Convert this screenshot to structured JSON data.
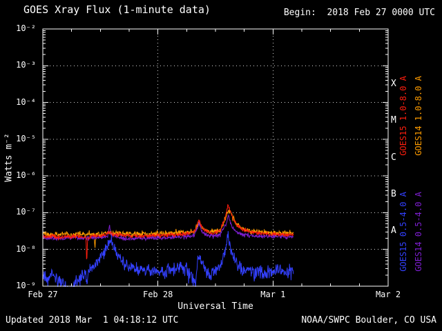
{
  "header": {
    "title": "GOES Xray Flux (1-minute data)",
    "begin_label": "Begin:  2018 Feb 27 0000 UTC"
  },
  "footer": {
    "updated": "Updated 2018 Mar  1 04:18:12 UTC",
    "credit": "NOAA/SWPC Boulder, CO USA"
  },
  "colors": {
    "background": "#000000",
    "axis": "#ffffff",
    "goes15_long": "#ff1e0e",
    "goes14_long": "#ff9c00",
    "goes15_short": "#3340ff",
    "goes14_short": "#7d1fd0"
  },
  "chart_data": {
    "type": "line",
    "title": "GOES Xray Flux (1-minute data)",
    "xlabel": "Universal Time",
    "ylabel": "Watts m⁻²",
    "x_start": "2018 Feb 27 0000 UTC",
    "x_units": "hours since begin",
    "x_range_hours": [
      0,
      72
    ],
    "y_range": [
      1e-09,
      0.01
    ],
    "y_scale": "log",
    "grid": {
      "h_decades": [
        -8,
        -7,
        -6,
        -5,
        -4,
        -3
      ],
      "v_hours": [
        24,
        48
      ]
    },
    "x_ticks": [
      {
        "label": "Feb 27",
        "t": 0
      },
      {
        "label": "Feb 28",
        "t": 24
      },
      {
        "label": "Mar 1",
        "t": 48
      },
      {
        "label": "Mar 2",
        "t": 72
      }
    ],
    "y_ticks": [
      {
        "label": "10⁻²",
        "exp": -2
      },
      {
        "label": "10⁻³",
        "exp": -3
      },
      {
        "label": "10⁻⁴",
        "exp": -4
      },
      {
        "label": "10⁻⁵",
        "exp": -5
      },
      {
        "label": "10⁻⁶",
        "exp": -6
      },
      {
        "label": "10⁻⁷",
        "exp": -7
      },
      {
        "label": "10⁻⁸",
        "exp": -8
      },
      {
        "label": "10⁻⁹",
        "exp": -9
      }
    ],
    "flux_classes": [
      {
        "label": "X",
        "log_center": -3.5
      },
      {
        "label": "M",
        "log_center": -4.5
      },
      {
        "label": "C",
        "log_center": -5.5
      },
      {
        "label": "B",
        "log_center": -6.5
      },
      {
        "label": "A",
        "log_center": -7.5
      }
    ],
    "legend_position": "right",
    "series": [
      {
        "name": "GOES15 1.0-8.0 A",
        "color": "#ff1e0e",
        "noise_log_sigma": 0.045,
        "points": [
          [
            0,
            2.3e-08
          ],
          [
            1,
            2.2e-08
          ],
          [
            2,
            2.4e-08
          ],
          [
            3,
            2.1e-08
          ],
          [
            4,
            2.2e-08
          ],
          [
            5,
            2.3e-08
          ],
          [
            6,
            2.2e-08
          ],
          [
            7,
            2.3e-08
          ],
          [
            8,
            2.2e-08
          ],
          [
            9.0,
            2.1e-08
          ],
          [
            9.15,
            3.5e-09
          ],
          [
            9.35,
            2.1e-08
          ],
          [
            10,
            2.2e-08
          ],
          [
            11,
            2.3e-08
          ],
          [
            12,
            2.3e-08
          ],
          [
            13,
            2.4e-08
          ],
          [
            13.9,
            3e-08
          ],
          [
            14.5,
            2.6e-08
          ],
          [
            15.5,
            2.5e-08
          ],
          [
            17,
            2.4e-08
          ],
          [
            19,
            2.3e-08
          ],
          [
            21,
            2.3e-08
          ],
          [
            23,
            2.4e-08
          ],
          [
            25,
            2.4e-08
          ],
          [
            27,
            2.5e-08
          ],
          [
            29,
            2.6e-08
          ],
          [
            30.5,
            2.8e-08
          ],
          [
            31.8,
            3.2e-08
          ],
          [
            32.5,
            6.8e-08
          ],
          [
            33.0,
            4.5e-08
          ],
          [
            33.8,
            3.2e-08
          ],
          [
            35,
            2.8e-08
          ],
          [
            36,
            2.9e-08
          ],
          [
            37,
            3.4e-08
          ],
          [
            38.0,
            7e-08
          ],
          [
            38.6,
            1.6e-07
          ],
          [
            39.0,
            1.2e-07
          ],
          [
            39.6,
            7e-08
          ],
          [
            40.5,
            4.5e-08
          ],
          [
            41.5,
            3.6e-08
          ],
          [
            43,
            3e-08
          ],
          [
            45,
            2.8e-08
          ],
          [
            47,
            2.6e-08
          ],
          [
            49,
            2.6e-08
          ],
          [
            51,
            2.5e-08
          ],
          [
            52.3,
            2.5e-08
          ]
        ]
      },
      {
        "name": "GOES14 1.0-8.0 A",
        "color": "#ff9c00",
        "noise_log_sigma": 0.07,
        "points": [
          [
            0,
            2.6e-08
          ],
          [
            2,
            2.5e-08
          ],
          [
            4,
            2.6e-08
          ],
          [
            6,
            2.5e-08
          ],
          [
            8,
            2.6e-08
          ],
          [
            10,
            2.6e-08
          ],
          [
            10.7,
            2.6e-08
          ],
          [
            10.85,
            9e-09
          ],
          [
            11.05,
            2.5e-08
          ],
          [
            12,
            2.6e-08
          ],
          [
            14,
            2.8e-08
          ],
          [
            16,
            2.7e-08
          ],
          [
            18,
            2.6e-08
          ],
          [
            20,
            2.6e-08
          ],
          [
            22,
            2.6e-08
          ],
          [
            24,
            2.7e-08
          ],
          [
            26,
            2.7e-08
          ],
          [
            28,
            2.8e-08
          ],
          [
            30,
            2.9e-08
          ],
          [
            31.5,
            3e-08
          ],
          [
            32.5,
            5.5e-08
          ],
          [
            33.2,
            3.8e-08
          ],
          [
            34,
            3.2e-08
          ],
          [
            35.5,
            3e-08
          ],
          [
            37,
            3.2e-08
          ],
          [
            38.2,
            8e-08
          ],
          [
            38.8,
            1.15e-07
          ],
          [
            39.4,
            8e-08
          ],
          [
            40.2,
            5e-08
          ],
          [
            41.5,
            3.8e-08
          ],
          [
            43,
            3.2e-08
          ],
          [
            45,
            3e-08
          ],
          [
            47,
            2.9e-08
          ],
          [
            49,
            2.8e-08
          ],
          [
            51,
            2.8e-08
          ],
          [
            52.3,
            2.8e-08
          ]
        ]
      },
      {
        "name": "GOES15 0.5-4.0 A",
        "color": "#3340ff",
        "noise_log_sigma": 0.16,
        "points": [
          [
            0,
            2e-09
          ],
          [
            1,
            1.6e-09
          ],
          [
            2,
            2.2e-09
          ],
          [
            3,
            1.4e-09
          ],
          [
            4,
            1.2e-09
          ],
          [
            4.5,
            1.1e-09
          ],
          [
            5,
            7e-10
          ],
          [
            5.6,
            5e-10
          ],
          [
            6.2,
            9e-10
          ],
          [
            7,
            1.3e-09
          ],
          [
            8,
            1.8e-09
          ],
          [
            9,
            2.4e-09
          ],
          [
            9.15,
            1e-09
          ],
          [
            9.4,
            2.6e-09
          ],
          [
            10,
            3e-09
          ],
          [
            11,
            4e-09
          ],
          [
            12,
            6e-09
          ],
          [
            13,
            9e-09
          ],
          [
            13.8,
            1.6e-08
          ],
          [
            14.3,
            2e-08
          ],
          [
            15,
            1e-08
          ],
          [
            16,
            6e-09
          ],
          [
            17,
            4.5e-09
          ],
          [
            18,
            3.5e-09
          ],
          [
            19,
            3e-09
          ],
          [
            20,
            2.6e-09
          ],
          [
            21,
            3e-09
          ],
          [
            22,
            2.3e-09
          ],
          [
            23,
            2.8e-09
          ],
          [
            24,
            2.5e-09
          ],
          [
            25,
            2.2e-09
          ],
          [
            26,
            3e-09
          ],
          [
            27,
            2.6e-09
          ],
          [
            28,
            3.4e-09
          ],
          [
            29,
            3e-09
          ],
          [
            30,
            2.5e-09
          ],
          [
            31,
            2e-09
          ],
          [
            31.8,
            1.2e-09
          ],
          [
            32.5,
            8e-09
          ],
          [
            33,
            4.5e-09
          ],
          [
            34,
            2.6e-09
          ],
          [
            35,
            2.2e-09
          ],
          [
            36,
            2.6e-09
          ],
          [
            37,
            3e-09
          ],
          [
            38.2,
            1.2e-08
          ],
          [
            38.6,
            2.4e-08
          ],
          [
            39.2,
            1e-08
          ],
          [
            40,
            5e-09
          ],
          [
            41,
            3.5e-09
          ],
          [
            42,
            2.6e-09
          ],
          [
            43,
            3e-09
          ],
          [
            44,
            2.2e-09
          ],
          [
            45,
            2.8e-09
          ],
          [
            46,
            2.1e-09
          ],
          [
            47,
            2.6e-09
          ],
          [
            48,
            2.2e-09
          ],
          [
            49,
            3e-09
          ],
          [
            50,
            2.5e-09
          ],
          [
            51,
            2.2e-09
          ],
          [
            52.3,
            2.5e-09
          ]
        ]
      },
      {
        "name": "GOES14 0.5-4.0 A",
        "color": "#7d1fd0",
        "noise_log_sigma": 0.05,
        "points": [
          [
            0,
            2e-08
          ],
          [
            2,
            2.1e-08
          ],
          [
            4,
            2e-08
          ],
          [
            6,
            2.1e-08
          ],
          [
            8,
            2e-08
          ],
          [
            10,
            2.1e-08
          ],
          [
            12,
            2.1e-08
          ],
          [
            13.6,
            2.2e-08
          ],
          [
            13.9,
            4.6e-08
          ],
          [
            14.2,
            2.4e-08
          ],
          [
            16,
            2.1e-08
          ],
          [
            18,
            2e-08
          ],
          [
            20,
            2.1e-08
          ],
          [
            22,
            2e-08
          ],
          [
            24,
            2.1e-08
          ],
          [
            26,
            2.1e-08
          ],
          [
            28,
            2.2e-08
          ],
          [
            30,
            2.2e-08
          ],
          [
            31.5,
            2.4e-08
          ],
          [
            32.6,
            5e-08
          ],
          [
            33.4,
            2.8e-08
          ],
          [
            35,
            2.3e-08
          ],
          [
            37,
            2.5e-08
          ],
          [
            38.3,
            5.5e-08
          ],
          [
            38.7,
            8.5e-08
          ],
          [
            39.5,
            3.8e-08
          ],
          [
            40.5,
            2.8e-08
          ],
          [
            42,
            2.5e-08
          ],
          [
            44,
            2.3e-08
          ],
          [
            46,
            2.3e-08
          ],
          [
            48,
            2.2e-08
          ],
          [
            50,
            2.2e-08
          ],
          [
            52.3,
            2.2e-08
          ]
        ]
      }
    ]
  }
}
